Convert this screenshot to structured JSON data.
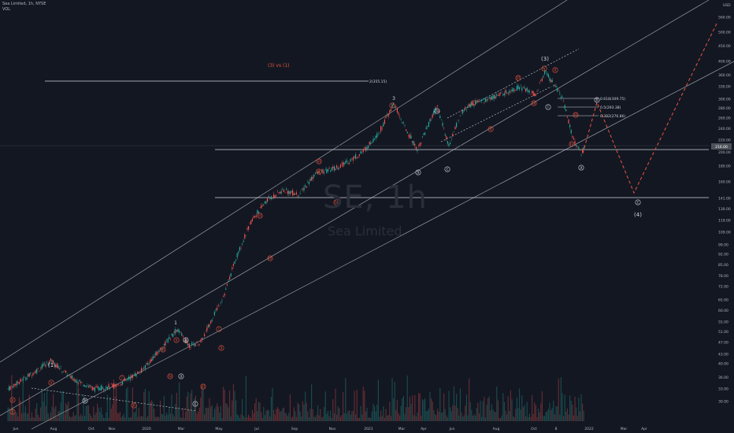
{
  "header": {
    "symbol_line": "Sea Limited, 1h, NYSE",
    "volume_label": "VOL"
  },
  "watermark": {
    "ticker": "SE, 1h",
    "name": "Sea Limited"
  },
  "currency": "USD",
  "annotation_ratio": "(3) vs (1)",
  "colors": {
    "background": "#131722",
    "up": "#26a69a",
    "down": "#ef5350",
    "projection": "#e8553f",
    "lines": "#d1d4dc",
    "price_badge": "#4c5259"
  },
  "chart_data": {
    "type": "candlestick",
    "scale": "log",
    "y_ticks": [
      560.0,
      500.0,
      450.0,
      400.0,
      360.0,
      330.0,
      300.0,
      280.0,
      260.0,
      240.0,
      220.0,
      200.0,
      180.0,
      160.0,
      141.0,
      130.0,
      119.0,
      109.0,
      99.0,
      92.0,
      85.0,
      78.0,
      72.0,
      65.0,
      60.0,
      55.0,
      51.0,
      47.0,
      43.0,
      40.0,
      36.0,
      33.0,
      30.0
    ],
    "x_ticks": [
      "Jun",
      "Aug",
      "Oct",
      "Nov",
      "2020",
      "Mar",
      "May",
      "Jul",
      "Sep",
      "Nov",
      "2021",
      "Mar",
      "Apr",
      "Jun",
      "Aug",
      "Oct",
      "8",
      "2022",
      "Mar",
      "Apr"
    ],
    "horizontal_levels": [
      {
        "label": "2(355.15)",
        "price": 355.15
      },
      {
        "label": "0.618(309.75)",
        "price": 309.75
      },
      {
        "label": "0.5(293.38)",
        "price": 293.38
      },
      {
        "label": "0.382(276.86)",
        "price": 276.86
      }
    ],
    "support_levels": [
      216.0,
      150.0
    ],
    "current_price_badge": "216.00",
    "waves": [
      "(1)",
      "1",
      "3",
      "(3)",
      "a",
      "b",
      "c",
      "(4)",
      "i",
      "ii",
      "iii",
      "iv",
      "v"
    ],
    "projection_path": "zigzag down to ~155 then up beyond 560"
  }
}
